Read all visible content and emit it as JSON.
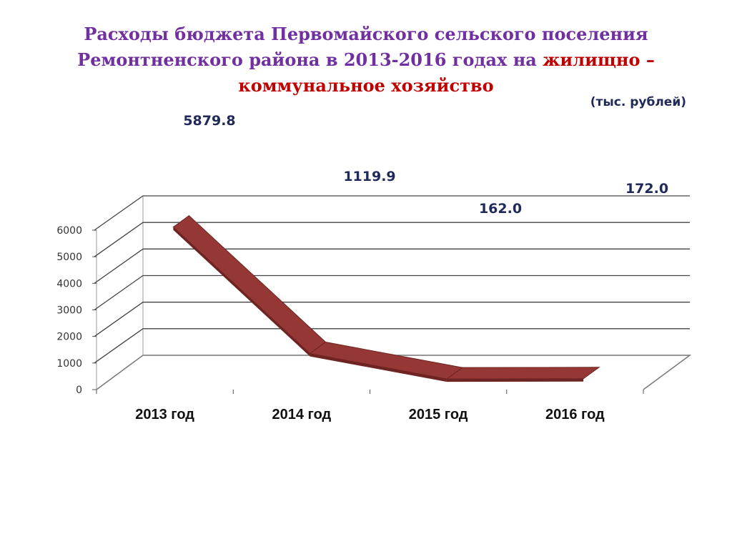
{
  "title": {
    "line1": "Расходы бюджета Первомайского сельского поселения",
    "line2_prefix": "Ремонтненского района в 2013-2016 годах на ",
    "line2_highlight": "жилищно –",
    "line3_highlight": "коммунальное хозяйство"
  },
  "units": "(тыс. рублей)",
  "colors": {
    "title": "#7030a0",
    "highlight": "#c00000",
    "line": "#953735",
    "line_dark": "#6e2422",
    "labels": "#1f2a5a"
  },
  "chart_data": {
    "type": "line",
    "style": "3d-ribbon",
    "categories": [
      "2013 год",
      "2014 год",
      "2015 год",
      "2016 год"
    ],
    "series": [
      {
        "values": [
          5879.8,
          1119.9,
          162.0,
          172.0
        ]
      }
    ],
    "data_labels": [
      "5879.8",
      "1119.9",
      "162.0",
      "172.0"
    ],
    "ylim": [
      0,
      6000
    ],
    "yticks": [
      "0",
      "1000",
      "2000",
      "3000",
      "4000",
      "5000",
      "6000"
    ],
    "grid": true
  }
}
